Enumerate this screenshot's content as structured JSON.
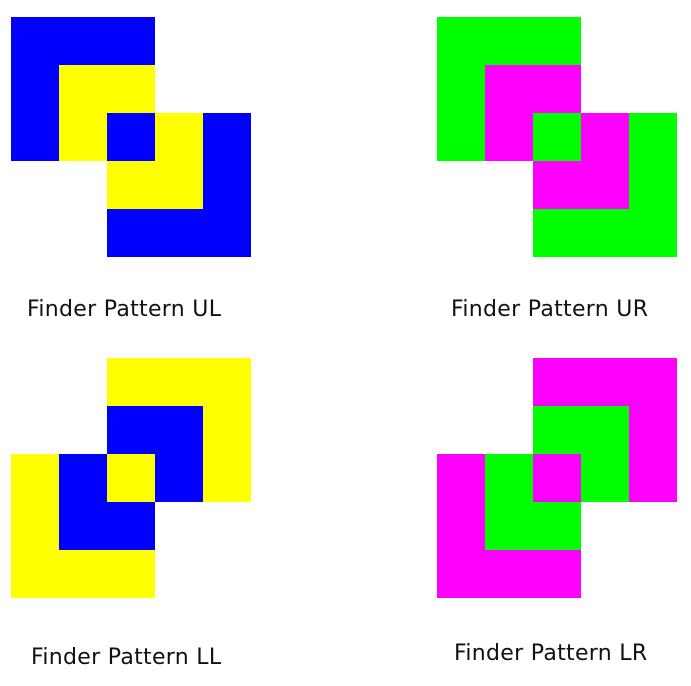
{
  "colors": {
    "blue": "#0000ff",
    "yellow": "#ffff00",
    "green": "#00ff00",
    "magenta": "#ff00ff"
  },
  "patterns": [
    {
      "id": "ul",
      "orientation": "upper-left",
      "caption": "Finder Pattern UL",
      "outer_color": "#0000ff",
      "inner_color": "#ffff00",
      "center_color": "#0000ff"
    },
    {
      "id": "ur",
      "orientation": "upper-left",
      "caption": "Finder Pattern UR",
      "outer_color": "#00ff00",
      "inner_color": "#ff00ff",
      "center_color": "#00ff00"
    },
    {
      "id": "ll",
      "orientation": "lower-left",
      "caption": "Finder Pattern LL",
      "outer_color": "#ffff00",
      "inner_color": "#0000ff",
      "center_color": "#ffff00"
    },
    {
      "id": "lr",
      "orientation": "lower-left",
      "caption": "Finder Pattern LR",
      "outer_color": "#ff00ff",
      "inner_color": "#00ff00",
      "center_color": "#ff00ff"
    }
  ]
}
